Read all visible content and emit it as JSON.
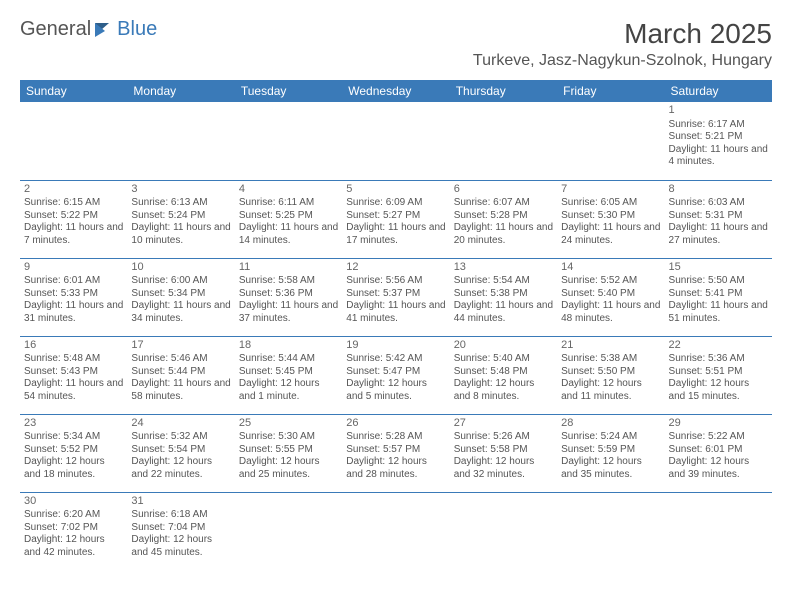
{
  "logo": {
    "part1": "General",
    "part2": "Blue"
  },
  "title": "March 2025",
  "location": "Turkeve, Jasz-Nagykun-Szolnok, Hungary",
  "weekdays": [
    "Sunday",
    "Monday",
    "Tuesday",
    "Wednesday",
    "Thursday",
    "Friday",
    "Saturday"
  ],
  "style": {
    "header_bg": "#3a7ab8",
    "header_text": "#ffffff",
    "cell_border": "#3a7ab8",
    "body_text": "#555555",
    "title_fontsize": 28,
    "location_fontsize": 16,
    "weekday_fontsize": 12,
    "cell_fontsize": 10
  },
  "weeks": [
    [
      null,
      null,
      null,
      null,
      null,
      null,
      {
        "d": "1",
        "sr": "6:17 AM",
        "ss": "5:21 PM",
        "dl": "11 hours and 4 minutes."
      }
    ],
    [
      {
        "d": "2",
        "sr": "6:15 AM",
        "ss": "5:22 PM",
        "dl": "11 hours and 7 minutes."
      },
      {
        "d": "3",
        "sr": "6:13 AM",
        "ss": "5:24 PM",
        "dl": "11 hours and 10 minutes."
      },
      {
        "d": "4",
        "sr": "6:11 AM",
        "ss": "5:25 PM",
        "dl": "11 hours and 14 minutes."
      },
      {
        "d": "5",
        "sr": "6:09 AM",
        "ss": "5:27 PM",
        "dl": "11 hours and 17 minutes."
      },
      {
        "d": "6",
        "sr": "6:07 AM",
        "ss": "5:28 PM",
        "dl": "11 hours and 20 minutes."
      },
      {
        "d": "7",
        "sr": "6:05 AM",
        "ss": "5:30 PM",
        "dl": "11 hours and 24 minutes."
      },
      {
        "d": "8",
        "sr": "6:03 AM",
        "ss": "5:31 PM",
        "dl": "11 hours and 27 minutes."
      }
    ],
    [
      {
        "d": "9",
        "sr": "6:01 AM",
        "ss": "5:33 PM",
        "dl": "11 hours and 31 minutes."
      },
      {
        "d": "10",
        "sr": "6:00 AM",
        "ss": "5:34 PM",
        "dl": "11 hours and 34 minutes."
      },
      {
        "d": "11",
        "sr": "5:58 AM",
        "ss": "5:36 PM",
        "dl": "11 hours and 37 minutes."
      },
      {
        "d": "12",
        "sr": "5:56 AM",
        "ss": "5:37 PM",
        "dl": "11 hours and 41 minutes."
      },
      {
        "d": "13",
        "sr": "5:54 AM",
        "ss": "5:38 PM",
        "dl": "11 hours and 44 minutes."
      },
      {
        "d": "14",
        "sr": "5:52 AM",
        "ss": "5:40 PM",
        "dl": "11 hours and 48 minutes."
      },
      {
        "d": "15",
        "sr": "5:50 AM",
        "ss": "5:41 PM",
        "dl": "11 hours and 51 minutes."
      }
    ],
    [
      {
        "d": "16",
        "sr": "5:48 AM",
        "ss": "5:43 PM",
        "dl": "11 hours and 54 minutes."
      },
      {
        "d": "17",
        "sr": "5:46 AM",
        "ss": "5:44 PM",
        "dl": "11 hours and 58 minutes."
      },
      {
        "d": "18",
        "sr": "5:44 AM",
        "ss": "5:45 PM",
        "dl": "12 hours and 1 minute."
      },
      {
        "d": "19",
        "sr": "5:42 AM",
        "ss": "5:47 PM",
        "dl": "12 hours and 5 minutes."
      },
      {
        "d": "20",
        "sr": "5:40 AM",
        "ss": "5:48 PM",
        "dl": "12 hours and 8 minutes."
      },
      {
        "d": "21",
        "sr": "5:38 AM",
        "ss": "5:50 PM",
        "dl": "12 hours and 11 minutes."
      },
      {
        "d": "22",
        "sr": "5:36 AM",
        "ss": "5:51 PM",
        "dl": "12 hours and 15 minutes."
      }
    ],
    [
      {
        "d": "23",
        "sr": "5:34 AM",
        "ss": "5:52 PM",
        "dl": "12 hours and 18 minutes."
      },
      {
        "d": "24",
        "sr": "5:32 AM",
        "ss": "5:54 PM",
        "dl": "12 hours and 22 minutes."
      },
      {
        "d": "25",
        "sr": "5:30 AM",
        "ss": "5:55 PM",
        "dl": "12 hours and 25 minutes."
      },
      {
        "d": "26",
        "sr": "5:28 AM",
        "ss": "5:57 PM",
        "dl": "12 hours and 28 minutes."
      },
      {
        "d": "27",
        "sr": "5:26 AM",
        "ss": "5:58 PM",
        "dl": "12 hours and 32 minutes."
      },
      {
        "d": "28",
        "sr": "5:24 AM",
        "ss": "5:59 PM",
        "dl": "12 hours and 35 minutes."
      },
      {
        "d": "29",
        "sr": "5:22 AM",
        "ss": "6:01 PM",
        "dl": "12 hours and 39 minutes."
      }
    ],
    [
      {
        "d": "30",
        "sr": "6:20 AM",
        "ss": "7:02 PM",
        "dl": "12 hours and 42 minutes."
      },
      {
        "d": "31",
        "sr": "6:18 AM",
        "ss": "7:04 PM",
        "dl": "12 hours and 45 minutes."
      },
      null,
      null,
      null,
      null,
      null
    ]
  ],
  "labels": {
    "sunrise": "Sunrise:",
    "sunset": "Sunset:",
    "daylight": "Daylight:"
  }
}
